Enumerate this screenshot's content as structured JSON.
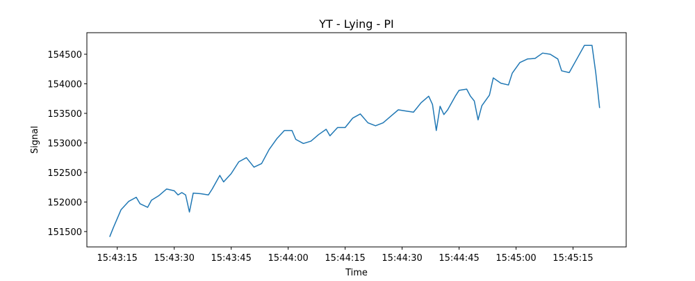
{
  "chart_data": {
    "type": "line",
    "title": "YT - Lying - PI",
    "x_label": "Time",
    "y_label": "Signal",
    "x": [
      "15:43:13",
      "15:43:14",
      "15:43:16",
      "15:43:18",
      "15:43:20",
      "15:43:21",
      "15:43:23",
      "15:43:24",
      "15:43:26",
      "15:43:28",
      "15:43:30",
      "15:43:31",
      "15:43:32",
      "15:43:33",
      "15:43:34",
      "15:43:35",
      "15:43:37",
      "15:43:39",
      "15:43:40",
      "15:43:42",
      "15:43:43",
      "15:43:45",
      "15:43:47",
      "15:43:49",
      "15:43:51",
      "15:43:53",
      "15:43:55",
      "15:43:57",
      "15:43:59",
      "15:44:01",
      "15:44:02",
      "15:44:04",
      "15:44:06",
      "15:44:08",
      "15:44:10",
      "15:44:11",
      "15:44:13",
      "15:44:15",
      "15:44:17",
      "15:44:19",
      "15:44:21",
      "15:44:23",
      "15:44:25",
      "15:44:27",
      "15:44:29",
      "15:44:31",
      "15:44:33",
      "15:44:35",
      "15:44:37",
      "15:44:38",
      "15:44:39",
      "15:44:40",
      "15:44:41",
      "15:44:42",
      "15:44:44",
      "15:44:45",
      "15:44:47",
      "15:44:48",
      "15:44:49",
      "15:44:50",
      "15:44:51",
      "15:44:53",
      "15:44:54",
      "15:44:56",
      "15:44:58",
      "15:44:59",
      "15:45:01",
      "15:45:03",
      "15:45:05",
      "15:45:07",
      "15:45:09",
      "15:45:11",
      "15:45:12",
      "15:45:14",
      "15:45:16",
      "15:45:18",
      "15:45:20",
      "15:45:21",
      "15:45:22"
    ],
    "values": [
      151410,
      151570,
      151870,
      152010,
      152080,
      151970,
      151910,
      152030,
      152110,
      152220,
      152190,
      152120,
      152160,
      152120,
      151830,
      152150,
      152140,
      152120,
      152220,
      152450,
      152340,
      152480,
      152680,
      152750,
      152590,
      152650,
      152890,
      153070,
      153210,
      153210,
      153060,
      152990,
      153030,
      153140,
      153230,
      153120,
      153260,
      153260,
      153420,
      153490,
      153340,
      153290,
      153340,
      153450,
      153560,
      153540,
      153520,
      153680,
      153790,
      153650,
      153210,
      153620,
      153480,
      153560,
      153790,
      153890,
      153910,
      153790,
      153710,
      153390,
      153630,
      153810,
      154100,
      154010,
      153980,
      154180,
      154360,
      154420,
      154430,
      154520,
      154500,
      154420,
      154220,
      154190,
      154420,
      154650,
      154650,
      154180,
      153590
    ],
    "color": "#1f77b4",
    "xlim": [
      "15:43:07",
      "15:45:29"
    ],
    "xticks": [
      "15:43:15",
      "15:43:30",
      "15:43:45",
      "15:44:00",
      "15:44:15",
      "15:44:30",
      "15:44:45",
      "15:45:00",
      "15:45:15"
    ],
    "ylim": [
      151240,
      154865
    ],
    "yticks": [
      151500,
      152000,
      152500,
      153000,
      153500,
      154000,
      154500
    ]
  }
}
